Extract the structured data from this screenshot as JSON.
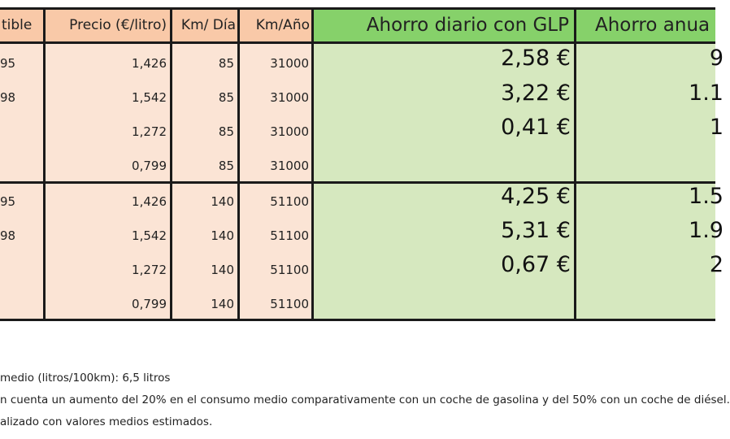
{
  "headers": {
    "combustible": "tible",
    "precio": "Precio (€/litro)",
    "km_dia": "Km/ Día",
    "km_ano": "Km/Año",
    "ahorro_diario": "Ahorro diario con GLP",
    "ahorro_anual": "Ahorro anua"
  },
  "rows": [
    {
      "fuel": "95",
      "precio": "1,426",
      "km_dia": "85",
      "km_ano": "31000",
      "diario": "2,58 €",
      "anual": "9"
    },
    {
      "fuel": "98",
      "precio": "1,542",
      "km_dia": "85",
      "km_ano": "31000",
      "diario": "3,22 €",
      "anual": "1.1"
    },
    {
      "fuel": "",
      "precio": "1,272",
      "km_dia": "85",
      "km_ano": "31000",
      "diario": "0,41 €",
      "anual": "1"
    },
    {
      "fuel": "",
      "precio": "0,799",
      "km_dia": "85",
      "km_ano": "31000",
      "diario": "",
      "anual": ""
    },
    {
      "fuel": "95",
      "precio": "1,426",
      "km_dia": "140",
      "km_ano": "51100",
      "diario": "4,25 €",
      "anual": "1.5"
    },
    {
      "fuel": "98",
      "precio": "1,542",
      "km_dia": "140",
      "km_ano": "51100",
      "diario": "5,31 €",
      "anual": "1.9"
    },
    {
      "fuel": "",
      "precio": "1,272",
      "km_dia": "140",
      "km_ano": "51100",
      "diario": "0,67 €",
      "anual": "2"
    },
    {
      "fuel": "",
      "precio": "0,799",
      "km_dia": "140",
      "km_ano": "51100",
      "diario": "",
      "anual": ""
    }
  ],
  "notes": [
    "medio (litros/100km): 6,5 litros",
    "n cuenta un aumento del 20% en el consumo medio comparativamente con un coche de gasolina y del 50% con un coche de diésel.",
    "alizado con valores medios estimados."
  ],
  "colors": {
    "header_peach": "#f9c9a8",
    "body_peach": "#fbe4d5",
    "header_green": "#86d16a",
    "body_green": "#d6e8bf",
    "border": "#1a1a1a"
  }
}
